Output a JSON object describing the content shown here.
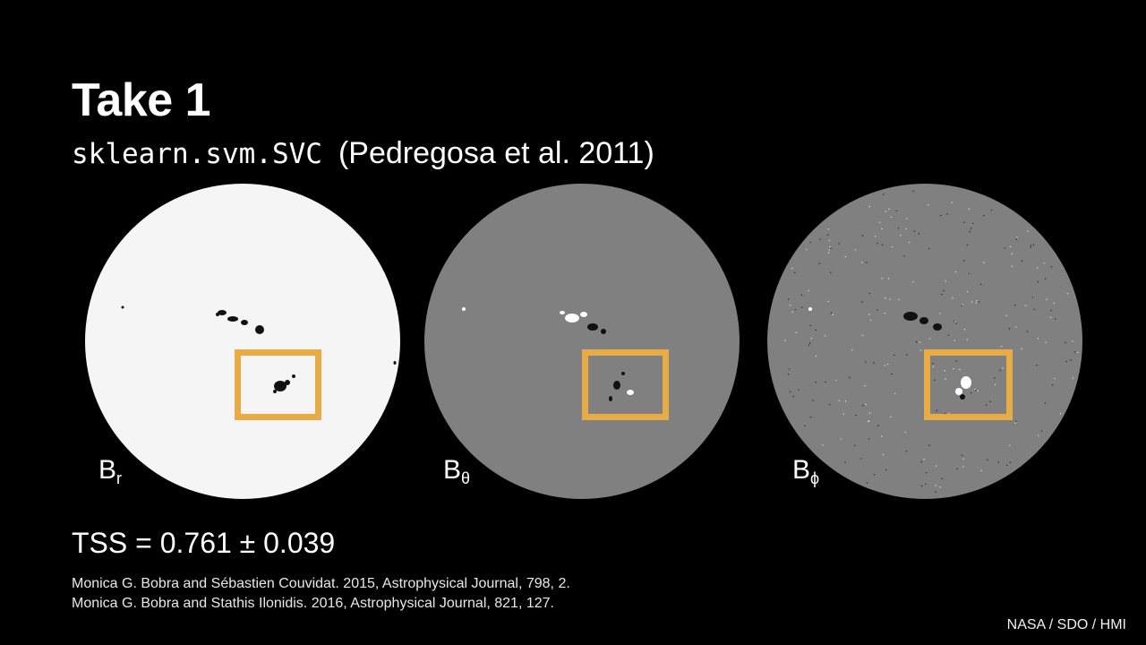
{
  "slide": {
    "title": "Take 1",
    "subtitle_code": "sklearn.svm.SVC",
    "subtitle_cite": "(Pedregosa et al. 2011)",
    "panels": [
      {
        "label_main": "B",
        "label_sub": "r",
        "disk_color": "#f5f5f5"
      },
      {
        "label_main": "B",
        "label_sub": "θ",
        "disk_color": "#808080"
      },
      {
        "label_main": "B",
        "label_sub": "ϕ",
        "disk_color": "#808080"
      }
    ],
    "highlight_color": "#e7ac45",
    "tss": "TSS = 0.761 ± 0.039",
    "references": [
      "Monica G. Bobra and Sébastien Couvidat. 2015, Astrophysical Journal, 798, 2.",
      "Monica G. Bobra and Stathis Ilonidis. 2016, Astrophysical Journal, 821, 127."
    ],
    "credit": "NASA / SDO / HMI"
  }
}
